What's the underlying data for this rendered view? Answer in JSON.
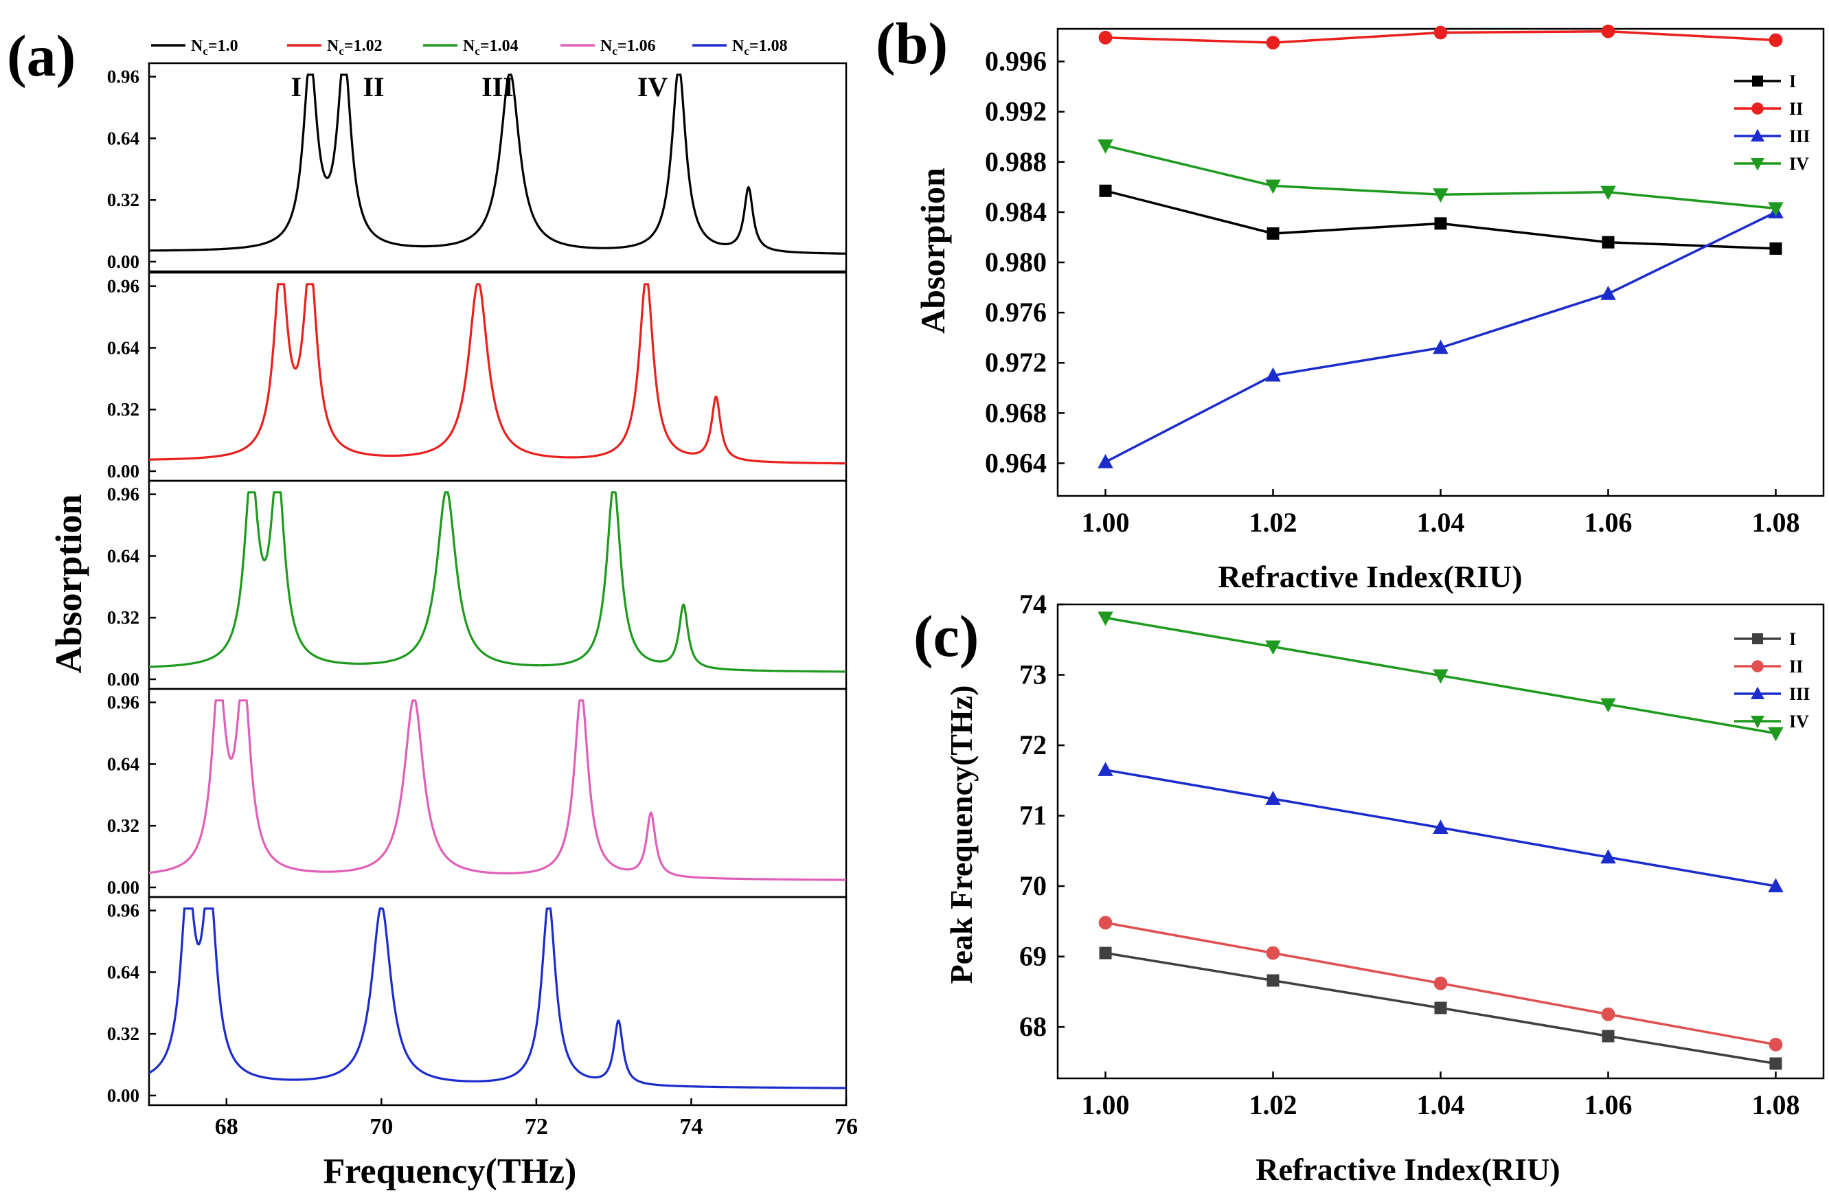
{
  "figure": {
    "panel_a_label": "(a)",
    "panel_b_label": "(b)",
    "panel_c_label": "(c)"
  },
  "chart_data": [
    {
      "id": "a",
      "type": "line",
      "title": "",
      "xlabel": "Frequency(THz)",
      "ylabel": "Absorption",
      "xlim": [
        67,
        76
      ],
      "ylim": [
        -0.05,
        1.03
      ],
      "x_ticks": [
        "68",
        "70",
        "72",
        "74",
        "76"
      ],
      "x_tick_values": [
        68,
        70,
        72,
        74,
        76
      ],
      "y_ticks": [
        "0.00",
        "0.32",
        "0.64",
        "0.96"
      ],
      "y_tick_values": [
        0,
        0.32,
        0.64,
        0.96
      ],
      "peak_labels": [
        "I",
        "II",
        "III",
        "IV"
      ],
      "peak_label_x": [
        68.9,
        69.9,
        71.5,
        73.5
      ],
      "legend": [
        "Nc=1.0",
        "Nc=1.02",
        "Nc=1.04",
        "Nc=1.06",
        "Nc=1.08"
      ],
      "legend_prefix": "N",
      "legend_sub": "c",
      "legend_values": [
        "=1.0",
        "=1.02",
        "=1.04",
        "=1.06",
        "=1.08"
      ],
      "series": [
        {
          "name": "Nc=1.0",
          "color": "#000000",
          "peaks": [
            69.08,
            69.52,
            71.66,
            73.84,
            74.74
          ]
        },
        {
          "name": "Nc=1.02",
          "color": "#e8201e",
          "peaks": [
            68.7,
            69.08,
            71.25,
            73.42,
            74.32
          ]
        },
        {
          "name": "Nc=1.04",
          "color": "#1e9a1e",
          "peaks": [
            68.32,
            68.66,
            70.84,
            73.0,
            73.9
          ]
        },
        {
          "name": "Nc=1.06",
          "color": "#e060b8",
          "peaks": [
            67.9,
            68.22,
            70.42,
            72.58,
            73.48
          ]
        },
        {
          "name": "Nc=1.08",
          "color": "#1c2ccc",
          "peaks": [
            67.5,
            67.78,
            70.0,
            72.16,
            73.06
          ]
        }
      ],
      "peak_heights": [
        0.95,
        0.96,
        0.93,
        0.96,
        0.33
      ],
      "peak_widths": [
        0.11,
        0.11,
        0.15,
        0.11,
        0.07
      ]
    },
    {
      "id": "b",
      "type": "line",
      "title": "",
      "xlabel": "Refractive Index(RIU)",
      "ylabel": "Absorption",
      "x": [
        1.0,
        1.02,
        1.04,
        1.06,
        1.08
      ],
      "x_ticks": [
        "1.00",
        "1.02",
        "1.04",
        "1.06",
        "1.08"
      ],
      "xlim": [
        0.9943,
        1.0857
      ],
      "ylim": [
        0.9614,
        0.9986
      ],
      "y_ticks": [
        "0.964",
        "0.968",
        "0.972",
        "0.976",
        "0.980",
        "0.984",
        "0.988",
        "0.992",
        "0.996"
      ],
      "y_tick_values": [
        0.964,
        0.968,
        0.972,
        0.976,
        0.98,
        0.984,
        0.988,
        0.992,
        0.996
      ],
      "legend_position": "top-right",
      "series": [
        {
          "name": "I",
          "color": "#000000",
          "marker": "square",
          "values": [
            0.9857,
            0.9823,
            0.9831,
            0.9816,
            0.9811
          ]
        },
        {
          "name": "II",
          "color": "#e8201e",
          "marker": "circle",
          "values": [
            0.9979,
            0.9975,
            0.9983,
            0.9984,
            0.9977
          ]
        },
        {
          "name": "III",
          "color": "#1c2ccc",
          "marker": "triangle-up",
          "values": [
            0.9641,
            0.971,
            0.9732,
            0.9775,
            0.984
          ]
        },
        {
          "name": "IV",
          "color": "#1e9a1e",
          "marker": "triangle-down",
          "values": [
            0.9893,
            0.9861,
            0.9854,
            0.9856,
            0.9843
          ]
        }
      ]
    },
    {
      "id": "c",
      "type": "line",
      "title": "",
      "xlabel": "Refractive Index(RIU)",
      "ylabel": "Peak Frequency(THz)",
      "x": [
        1.0,
        1.02,
        1.04,
        1.06,
        1.08
      ],
      "x_ticks": [
        "1.00",
        "1.02",
        "1.04",
        "1.06",
        "1.08"
      ],
      "xlim": [
        0.9943,
        1.0857
      ],
      "ylim": [
        67.27,
        74.0
      ],
      "y_ticks": [
        "68",
        "69",
        "70",
        "71",
        "72",
        "73",
        "74"
      ],
      "y_tick_values": [
        68,
        69,
        70,
        71,
        72,
        73,
        74
      ],
      "legend_position": "top-right",
      "series": [
        {
          "name": "I",
          "color": "#404040",
          "marker": "square",
          "values": [
            69.05,
            68.66,
            68.27,
            67.87,
            67.48
          ]
        },
        {
          "name": "II",
          "color": "#e05050",
          "marker": "circle",
          "values": [
            69.48,
            69.05,
            68.62,
            68.18,
            67.75
          ]
        },
        {
          "name": "III",
          "color": "#1c2ccc",
          "marker": "triangle-up",
          "values": [
            71.65,
            71.24,
            70.83,
            70.41,
            70.0
          ]
        },
        {
          "name": "IV",
          "color": "#1e9a1e",
          "marker": "triangle-down",
          "values": [
            73.81,
            73.4,
            72.99,
            72.58,
            72.17
          ]
        }
      ]
    }
  ]
}
